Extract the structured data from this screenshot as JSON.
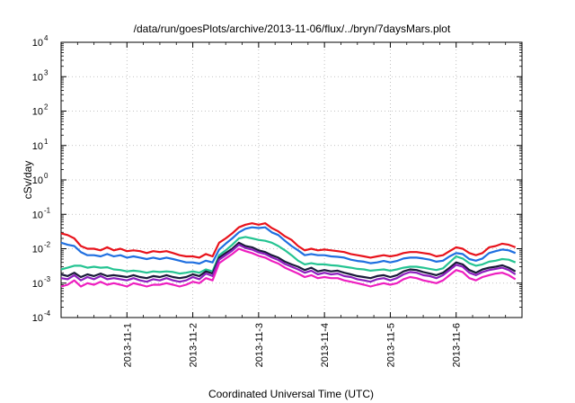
{
  "chart_data": {
    "type": "line",
    "title": "/data/run/goesPlots/archive/2013-11-06/flux/../bryn/7daysMars.plot",
    "xlabel": "Coordinated Universal Time (UTC)",
    "ylabel": "cSv/day",
    "yscale": "log",
    "ylim": [
      0.0001,
      10000
    ],
    "yticks": [
      {
        "base": "10",
        "exp": "4"
      },
      {
        "base": "10",
        "exp": "3"
      },
      {
        "base": "10",
        "exp": "2"
      },
      {
        "base": "10",
        "exp": "1"
      },
      {
        "base": "10",
        "exp": "0"
      },
      {
        "base": "10",
        "exp": "-1"
      },
      {
        "base": "10",
        "exp": "-2"
      },
      {
        "base": "10",
        "exp": "-3"
      },
      {
        "base": "10",
        "exp": "-4"
      }
    ],
    "xlim": [
      0,
      7
    ],
    "xtick_positions": [
      1,
      2,
      3,
      4,
      5,
      6
    ],
    "xticks": [
      "2013-11-1",
      "2013-11-2",
      "2013-11-3",
      "2013-11-4",
      "2013-11-5",
      "2013-11-6"
    ],
    "grid": true,
    "x_unit": "days from 2013-10-31 00:00 UTC",
    "x": [
      0.0,
      0.1,
      0.2,
      0.3,
      0.4,
      0.5,
      0.6,
      0.7,
      0.8,
      0.9,
      1.0,
      1.1,
      1.2,
      1.3,
      1.4,
      1.5,
      1.6,
      1.7,
      1.8,
      1.9,
      2.0,
      2.1,
      2.2,
      2.3,
      2.4,
      2.5,
      2.6,
      2.7,
      2.8,
      2.9,
      3.0,
      3.1,
      3.2,
      3.3,
      3.4,
      3.5,
      3.6,
      3.7,
      3.8,
      3.9,
      4.0,
      4.1,
      4.2,
      4.3,
      4.4,
      4.5,
      4.6,
      4.7,
      4.8,
      4.9,
      5.0,
      5.1,
      5.2,
      5.3,
      5.4,
      5.5,
      5.6,
      5.7,
      5.8,
      5.9,
      6.0,
      6.1,
      6.2,
      6.3,
      6.4,
      6.5,
      6.6,
      6.7,
      6.8,
      6.9
    ],
    "series": [
      {
        "color": "#e8131c",
        "values": [
          0.028,
          0.025,
          0.02,
          0.012,
          0.01,
          0.01,
          0.009,
          0.011,
          0.009,
          0.01,
          0.0085,
          0.009,
          0.0085,
          0.0075,
          0.0085,
          0.008,
          0.0085,
          0.0075,
          0.0065,
          0.006,
          0.006,
          0.0055,
          0.007,
          0.006,
          0.015,
          0.02,
          0.028,
          0.042,
          0.05,
          0.055,
          0.05,
          0.055,
          0.04,
          0.032,
          0.023,
          0.018,
          0.012,
          0.009,
          0.01,
          0.009,
          0.0095,
          0.009,
          0.0085,
          0.008,
          0.007,
          0.0065,
          0.006,
          0.0055,
          0.006,
          0.0065,
          0.006,
          0.0065,
          0.0075,
          0.008,
          0.008,
          0.0075,
          0.007,
          0.006,
          0.0065,
          0.0085,
          0.011,
          0.01,
          0.0075,
          0.0065,
          0.0075,
          0.011,
          0.012,
          0.014,
          0.013,
          0.011
        ]
      },
      {
        "color": "#1f6fe0",
        "values": [
          0.015,
          0.013,
          0.012,
          0.008,
          0.0065,
          0.0065,
          0.006,
          0.007,
          0.006,
          0.0065,
          0.0055,
          0.006,
          0.0055,
          0.005,
          0.0055,
          0.005,
          0.0055,
          0.005,
          0.0045,
          0.004,
          0.004,
          0.0037,
          0.0045,
          0.004,
          0.0095,
          0.014,
          0.02,
          0.03,
          0.038,
          0.042,
          0.04,
          0.042,
          0.03,
          0.025,
          0.017,
          0.012,
          0.009,
          0.0065,
          0.007,
          0.0065,
          0.0065,
          0.006,
          0.0058,
          0.0055,
          0.0048,
          0.0044,
          0.0042,
          0.0038,
          0.004,
          0.0044,
          0.004,
          0.0044,
          0.0052,
          0.0055,
          0.0055,
          0.0052,
          0.0048,
          0.0042,
          0.0045,
          0.006,
          0.0075,
          0.007,
          0.005,
          0.0045,
          0.0052,
          0.0075,
          0.0085,
          0.0095,
          0.009,
          0.0075
        ]
      },
      {
        "color": "#25c492",
        "values": [
          0.0025,
          0.0028,
          0.0032,
          0.0032,
          0.0028,
          0.003,
          0.0028,
          0.0029,
          0.0025,
          0.0024,
          0.0022,
          0.0023,
          0.0022,
          0.002,
          0.0022,
          0.0021,
          0.0022,
          0.0021,
          0.0019,
          0.002,
          0.0022,
          0.002,
          0.0025,
          0.0022,
          0.0065,
          0.009,
          0.013,
          0.02,
          0.022,
          0.02,
          0.018,
          0.017,
          0.015,
          0.012,
          0.009,
          0.0065,
          0.0045,
          0.0035,
          0.0038,
          0.0035,
          0.0035,
          0.0033,
          0.0032,
          0.003,
          0.0028,
          0.0026,
          0.0025,
          0.0023,
          0.0024,
          0.0025,
          0.0023,
          0.0025,
          0.0028,
          0.003,
          0.003,
          0.0028,
          0.0026,
          0.0024,
          0.0027,
          0.004,
          0.006,
          0.0052,
          0.0038,
          0.0032,
          0.0035,
          0.0042,
          0.0045,
          0.005,
          0.0048,
          0.004
        ]
      },
      {
        "color": "#1a1a3a",
        "values": [
          0.0018,
          0.0016,
          0.002,
          0.0015,
          0.0018,
          0.0016,
          0.0019,
          0.0016,
          0.0017,
          0.0016,
          0.0015,
          0.0017,
          0.0015,
          0.0014,
          0.0016,
          0.0015,
          0.0017,
          0.0015,
          0.0014,
          0.0015,
          0.0018,
          0.0016,
          0.0022,
          0.0019,
          0.0055,
          0.0075,
          0.01,
          0.015,
          0.012,
          0.011,
          0.009,
          0.008,
          0.0065,
          0.0055,
          0.0042,
          0.0035,
          0.003,
          0.0024,
          0.0028,
          0.0022,
          0.0024,
          0.0022,
          0.0023,
          0.002,
          0.0018,
          0.0016,
          0.0015,
          0.0014,
          0.0016,
          0.0017,
          0.0015,
          0.0017,
          0.0022,
          0.0025,
          0.0024,
          0.0021,
          0.0019,
          0.0017,
          0.002,
          0.0028,
          0.004,
          0.0035,
          0.0024,
          0.002,
          0.0025,
          0.0028,
          0.003,
          0.0033,
          0.0028,
          0.0022
        ]
      },
      {
        "color": "#8d1fbf",
        "values": [
          0.0014,
          0.0013,
          0.0017,
          0.0012,
          0.0015,
          0.0013,
          0.0016,
          0.0013,
          0.0014,
          0.0013,
          0.0012,
          0.0014,
          0.0012,
          0.0011,
          0.0013,
          0.0012,
          0.0014,
          0.0012,
          0.0011,
          0.0012,
          0.0015,
          0.0013,
          0.0019,
          0.0016,
          0.0048,
          0.0065,
          0.0088,
          0.013,
          0.0105,
          0.0095,
          0.0078,
          0.007,
          0.0056,
          0.0047,
          0.0036,
          0.003,
          0.0025,
          0.002,
          0.0023,
          0.0018,
          0.002,
          0.0018,
          0.0019,
          0.0016,
          0.0015,
          0.0013,
          0.0012,
          0.0011,
          0.0013,
          0.0014,
          0.0012,
          0.0014,
          0.0018,
          0.0021,
          0.002,
          0.0017,
          0.0016,
          0.0014,
          0.0017,
          0.0024,
          0.0034,
          0.003,
          0.002,
          0.0017,
          0.0021,
          0.0024,
          0.0026,
          0.0028,
          0.0024,
          0.0018
        ]
      },
      {
        "color": "#ee1fc0",
        "values": [
          0.0008,
          0.0009,
          0.0012,
          0.0008,
          0.001,
          0.0009,
          0.0011,
          0.0009,
          0.001,
          0.0009,
          0.0008,
          0.001,
          0.0009,
          0.0008,
          0.0009,
          0.0009,
          0.001,
          0.0009,
          0.0008,
          0.0009,
          0.0011,
          0.001,
          0.0014,
          0.0012,
          0.0038,
          0.0052,
          0.007,
          0.01,
          0.0085,
          0.0075,
          0.0062,
          0.0055,
          0.0044,
          0.0037,
          0.0028,
          0.0023,
          0.0019,
          0.0015,
          0.0017,
          0.0014,
          0.0015,
          0.0014,
          0.0014,
          0.0012,
          0.0011,
          0.001,
          0.0009,
          0.0008,
          0.0009,
          0.001,
          0.0009,
          0.001,
          0.0013,
          0.0015,
          0.0014,
          0.0012,
          0.0011,
          0.001,
          0.0012,
          0.0017,
          0.0024,
          0.0021,
          0.0014,
          0.0012,
          0.0015,
          0.0017,
          0.0019,
          0.002,
          0.0017,
          0.0013
        ]
      }
    ]
  }
}
